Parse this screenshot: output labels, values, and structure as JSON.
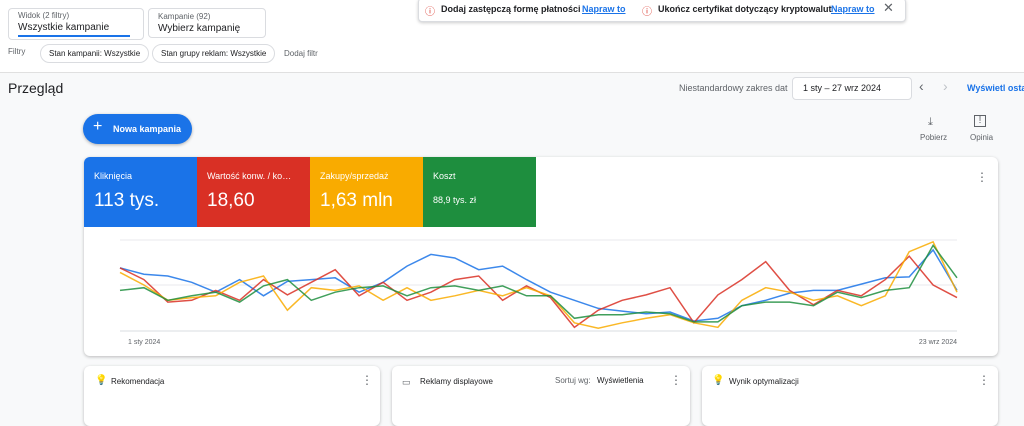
{
  "top": {
    "view_label": "Widok (2 filtry)",
    "view_value": "Wszystkie kampanie",
    "campaign_label": "Kampanie (92)",
    "campaign_value": "Wybierz kampanię",
    "alerts": [
      {
        "text": "Dodaj zastępczą formę płatności",
        "action": "Napraw to"
      },
      {
        "text": "Ukończ certyfikat dotyczący kryptowalut",
        "action": "Napraw to"
      }
    ]
  },
  "filters": {
    "label": "Filtry",
    "chips": [
      "Stan kampanii: Wszystkie",
      "Stan grupy reklam: Wszystkie"
    ],
    "add": "Dodaj filtr"
  },
  "overview": {
    "title": "Przegląd",
    "range_label": "Niestandardowy zakres dat",
    "range": "1 sty – 27 wrz 2024",
    "show": "Wyświetl osta",
    "new_campaign": "Nowa kampania",
    "download": "Pobierz",
    "feedback": "Opinia"
  },
  "metrics": [
    {
      "value": "113 tys."
    },
    {
      "value": "18,60"
    },
    {
      "value": "1,63 mln"
    },
    {
      "value": "88,9 tys. zł"
    }
  ],
  "chart_data": {
    "type": "line",
    "ylim": [
      0,
      100
    ],
    "categories": [
      "1 sty 2024",
      null,
      null,
      null,
      null,
      null,
      null,
      null,
      null,
      null,
      null,
      null,
      null,
      null,
      null,
      null,
      null,
      null,
      null,
      null,
      null,
      null,
      null,
      null,
      null,
      null,
      null,
      null,
      null,
      null,
      null,
      null,
      null,
      null,
      null,
      "23 wrz 2024"
    ],
    "series": [
      {
        "name": "Kliknięcia",
        "color": "#1a73e8",
        "values": [
          69,
          62,
          60,
          53,
          42,
          56,
          38,
          54,
          56,
          58,
          42,
          53,
          71,
          84,
          80,
          67,
          71,
          56,
          42,
          33,
          24,
          21,
          18,
          20,
          10,
          13,
          27,
          33,
          41,
          44,
          44,
          51,
          58,
          59,
          89,
          44
        ]
      },
      {
        "name": "Wartość konw. / ko…",
        "color": "#d93025",
        "values": [
          69,
          56,
          31,
          33,
          44,
          33,
          56,
          39,
          53,
          67,
          38,
          53,
          33,
          42,
          56,
          60,
          33,
          49,
          36,
          3,
          22,
          33,
          39,
          47,
          8,
          39,
          56,
          76,
          44,
          28,
          44,
          38,
          56,
          82,
          50,
          36
        ]
      },
      {
        "name": "Zakupy/sprzedaż",
        "color": "#f9ab00",
        "values": [
          64,
          50,
          33,
          36,
          38,
          53,
          60,
          22,
          47,
          44,
          49,
          33,
          47,
          33,
          38,
          44,
          38,
          47,
          38,
          8,
          2,
          8,
          13,
          17,
          8,
          3,
          33,
          47,
          42,
          33,
          38,
          27,
          38,
          87,
          98,
          42
        ]
      },
      {
        "name": "Koszt",
        "color": "#1e8e3e",
        "values": [
          44,
          47,
          33,
          38,
          42,
          31,
          49,
          56,
          33,
          42,
          47,
          49,
          38,
          47,
          49,
          44,
          49,
          38,
          38,
          13,
          17,
          17,
          20,
          18,
          9,
          9,
          27,
          31,
          31,
          27,
          42,
          36,
          44,
          47,
          94,
          58
        ]
      }
    ]
  },
  "cards": [
    {
      "title": "Rekomendacja"
    },
    {
      "title": "Reklamy displayowe",
      "sort_label": "Sortuj wg:",
      "sort_value": "Wyświetlenia"
    },
    {
      "title": "Wynik optymalizacji"
    }
  ]
}
